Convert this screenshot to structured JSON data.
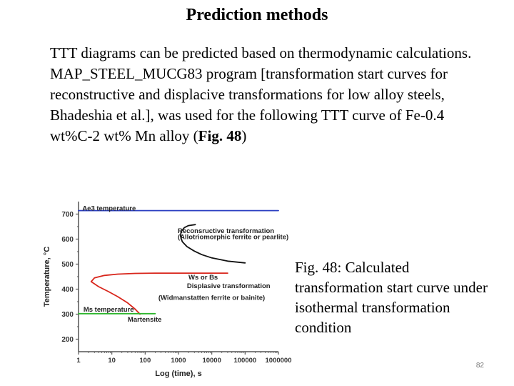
{
  "slide": {
    "title": "Prediction methods",
    "para1": "TTT diagrams can be predicted based on thermodynamic calculations.",
    "para2_main": "MAP_STEEL_MUCG83  program [transformation start curves for reconstructive and displacive transformations for low alloy steels, Bhadeshia et al.], was used for the following TTT curve of  Fe-0.4 wt%C-2 wt% Mn alloy (",
    "para2_bold": "Fig. 48",
    "para2_end": ")",
    "caption": "Fig. 48: Calculated transformation start curve under isothermal transformation condition",
    "page_number": "82"
  },
  "chart_data": {
    "type": "line",
    "title": "",
    "xlabel": "Log (time), s",
    "ylabel": "Temperature, °C",
    "x_scale": "log",
    "xlim": [
      1,
      1000000
    ],
    "ylim": [
      150,
      750
    ],
    "x_ticks": [
      1,
      10,
      100,
      1000,
      10000,
      100000,
      1000000
    ],
    "x_tick_labels": [
      "1",
      "10",
      "100",
      "1000",
      "10000",
      "100000",
      "1000000"
    ],
    "y_ticks": [
      200,
      300,
      400,
      500,
      600,
      700
    ],
    "y_tick_labels": [
      "200",
      "300",
      "400",
      "500",
      "600",
      "700"
    ],
    "colors": {
      "ae3": "#2b3fc2",
      "reconstructive": "#111111",
      "displacive": "#d8261c",
      "ms": "#2db52d",
      "axis": "#555555"
    },
    "series": [
      {
        "name": "Ae3 temperature",
        "key": "ae3",
        "x": [
          1,
          1000000
        ],
        "y": [
          714,
          714
        ]
      },
      {
        "name": "Reconstructive transformation",
        "key": "reconstructive",
        "x": [
          100000,
          30000,
          10000,
          5000,
          3000,
          1800,
          1300,
          1150,
          1200,
          1500,
          2000,
          3200
        ],
        "y": [
          505,
          512,
          525,
          538,
          552,
          570,
          590,
          612,
          630,
          646,
          654,
          658
        ]
      },
      {
        "name": "Displacive transformation",
        "key": "displacive",
        "x": [
          70,
          50,
          30,
          15,
          8,
          4,
          2.4,
          3,
          6,
          15,
          50,
          200,
          2000,
          30000
        ],
        "y": [
          300,
          320,
          345,
          370,
          390,
          410,
          430,
          445,
          455,
          460,
          463,
          464,
          464,
          464
        ]
      },
      {
        "name": "Ms temperature",
        "key": "ms",
        "x": [
          1,
          200
        ],
        "y": [
          302,
          302
        ]
      }
    ],
    "annotations": [
      {
        "text": "Ae3 temperature",
        "x": 1.3,
        "y": 714
      },
      {
        "text": "Reconsructive transformation",
        "x": 950,
        "y": 625
      },
      {
        "text": "(Allotriomorphic ferrite or pearlite)",
        "x": 950,
        "y": 600
      },
      {
        "text": "Ws or Bs",
        "x": 2000,
        "y": 438
      },
      {
        "text": "Displasive transformation",
        "x": 1800,
        "y": 405
      },
      {
        "text": "(Widmanstatten ferrite or bainite)",
        "x": 250,
        "y": 357
      },
      {
        "text": "Ms temperature",
        "x": 1.4,
        "y": 310
      },
      {
        "text": "Martensite",
        "x": 30,
        "y": 270
      }
    ]
  }
}
